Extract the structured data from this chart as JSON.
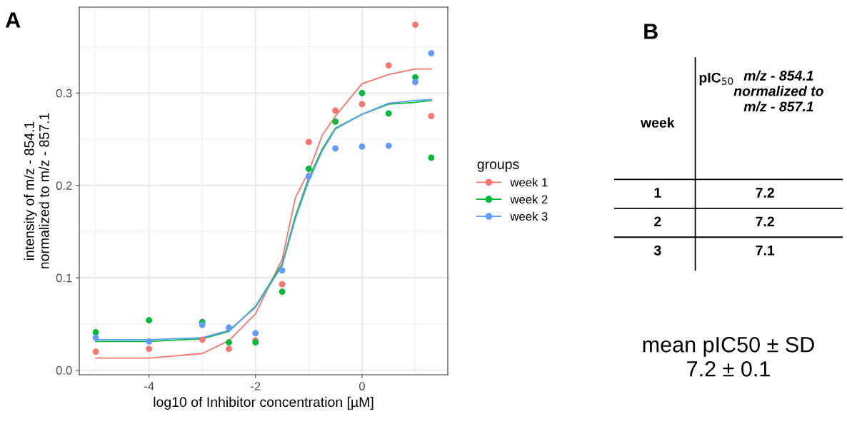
{
  "chart_data": [
    {
      "type": "scatter",
      "title": "A",
      "xlabel": "log10 of Inhibitor concentration [µM]",
      "ylabel": "intensity of m/z - 854.1\nnormalized to m/z - 857.1",
      "legend_title": "groups",
      "legend": "right",
      "grid": true,
      "marker": "circle",
      "xlim": [
        -5.31,
        1.61
      ],
      "xticks": [
        {
          "value": -5,
          "label": null
        },
        -4,
        {
          "value": -3,
          "label": null
        },
        -2,
        {
          "value": -1,
          "label": null
        },
        0,
        {
          "value": 1,
          "label": null
        }
      ],
      "ylim": [
        -0.005,
        0.393
      ],
      "yticks": [
        {
          "value": 0,
          "label": "0.0"
        },
        {
          "value": 0.05,
          "label": null
        },
        0.1,
        {
          "value": 0.15,
          "label": null
        },
        0.2,
        {
          "value": 0.25,
          "label": null
        },
        0.3,
        {
          "value": 0.35,
          "label": null
        }
      ],
      "x": [
        -5,
        -4,
        -3,
        -2.5,
        -2,
        -1.5,
        -1,
        -0.5,
        0,
        0.5,
        1,
        1.3
      ],
      "series": [
        {
          "type": "line",
          "marker": "none",
          "name": "week 1",
          "color": "#f8766d",
          "x": [
            -5,
            -4,
            -3,
            -2.5,
            -2,
            -1.5,
            -1.25,
            -1,
            -0.75,
            -0.5,
            0,
            0.5,
            1,
            1.3
          ],
          "values": [
            0.013,
            0.013,
            0.018,
            0.032,
            0.061,
            0.12,
            0.187,
            0.215,
            0.254,
            0.275,
            0.31,
            0.32,
            0.326,
            0.326
          ]
        },
        {
          "type": "line",
          "marker": "none",
          "name": "week 2",
          "color": "#00ba38",
          "x": [
            -5,
            -4,
            -3,
            -2.5,
            -2,
            -1.5,
            -1.25,
            -1,
            -0.75,
            -0.5,
            0,
            0.5,
            1,
            1.3
          ],
          "values": [
            0.031,
            0.031,
            0.034,
            0.042,
            0.069,
            0.115,
            0.167,
            0.208,
            0.239,
            0.262,
            0.277,
            0.288,
            0.29,
            0.292
          ]
        },
        {
          "type": "line",
          "marker": "none",
          "name": "week 3",
          "color": "#619cff",
          "x": [
            -5,
            -4,
            -3,
            -2.5,
            -2,
            -1.5,
            -1.25,
            -1,
            -0.75,
            -0.5,
            0,
            0.5,
            1,
            1.3
          ],
          "values": [
            0.033,
            0.033,
            0.035,
            0.043,
            0.068,
            0.113,
            0.164,
            0.205,
            0.237,
            0.261,
            0.277,
            0.289,
            0.292,
            0.293
          ]
        },
        {
          "type": "scatter",
          "color": "#f8766d",
          "values": [
            0.02,
            0.023,
            0.033,
            0.023,
            0.032,
            0.093,
            0.247,
            0.281,
            0.288,
            0.33,
            0.374,
            0.275
          ]
        },
        {
          "type": "scatter",
          "color": "#00ba38",
          "values": [
            0.041,
            0.054,
            0.052,
            0.03,
            0.03,
            0.085,
            0.218,
            0.269,
            0.3,
            0.278,
            0.317,
            0.23
          ]
        },
        {
          "type": "scatter",
          "color": "#619cff",
          "values": [
            0.035,
            0.031,
            0.049,
            0.046,
            0.04,
            0.108,
            0.21,
            0.24,
            0.242,
            0.243,
            0.312,
            0.343
          ]
        }
      ]
    },
    {
      "type": "other",
      "title": "B",
      "annotations": [
        "week",
        "pIC$_{50}$",
        "m/z - 854.1\nnormalized to\nm/z - 857.1",
        "1",
        "7.2",
        "2",
        "7.2",
        "3",
        "7.1",
        "mean pIC50 ± SD\n7.2 ± 0.1"
      ]
    }
  ]
}
